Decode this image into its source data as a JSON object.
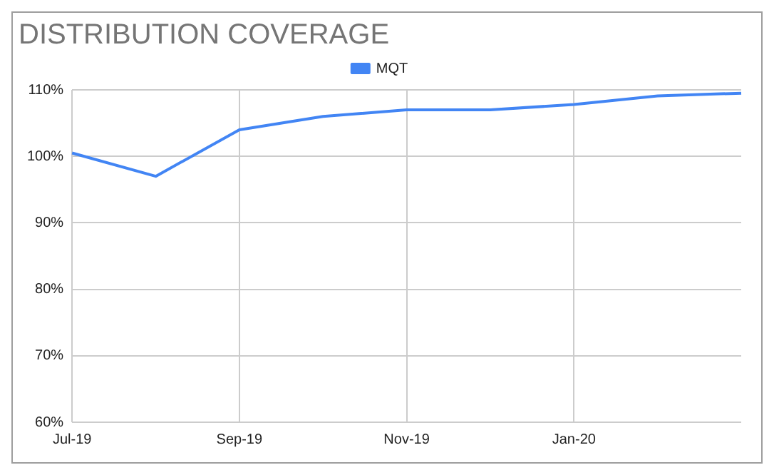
{
  "chart_data": {
    "type": "line",
    "title": "DISTRIBUTION COVERAGE",
    "categories": [
      "Jul-19",
      null,
      "Sep-19",
      null,
      "Nov-19",
      null,
      "Jan-20",
      null,
      null
    ],
    "series": [
      {
        "name": "MQT",
        "color": "#4285f4",
        "values": [
          100.5,
          97,
          104,
          106,
          107,
          107,
          107.8,
          109.1,
          109.5
        ]
      }
    ],
    "ylim": [
      60,
      110
    ],
    "yticks": [
      {
        "value": 60,
        "label": "60%"
      },
      {
        "value": 70,
        "label": "70%"
      },
      {
        "value": 80,
        "label": "80%"
      },
      {
        "value": 90,
        "label": "90%"
      },
      {
        "value": 100,
        "label": "100%"
      },
      {
        "value": 110,
        "label": "110%"
      }
    ],
    "grid": true,
    "legend": "top",
    "marker": "none",
    "line_style": "solid"
  }
}
